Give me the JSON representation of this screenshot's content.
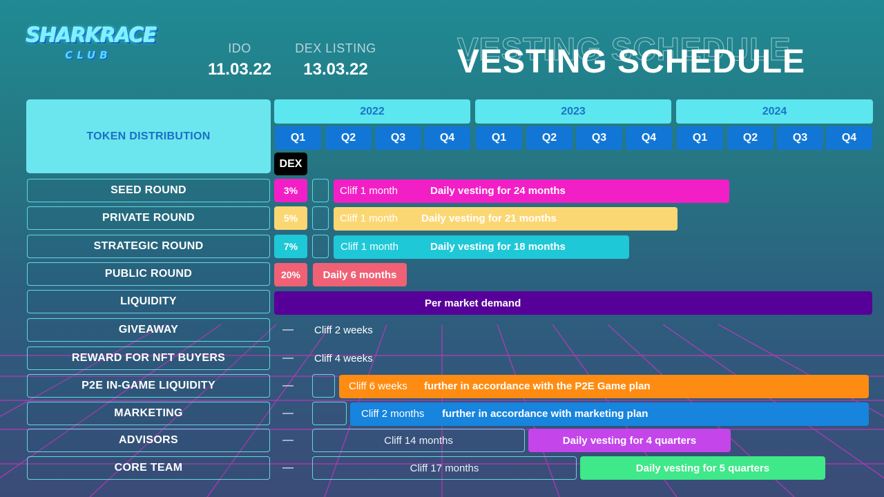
{
  "logo": {
    "main": "SHARKRACE",
    "sub": "CLUB"
  },
  "dates": [
    {
      "label": "IDO",
      "value": "11.03.22"
    },
    {
      "label": "DEX LISTING",
      "value": "13.03.22"
    }
  ],
  "title": "VESTING SCHEDULE",
  "table_header": "TOKEN DISTRIBUTION",
  "years": [
    "2022",
    "2023",
    "2024"
  ],
  "quarters": [
    "Q1",
    "Q2",
    "Q3",
    "Q4"
  ],
  "dex_label": "DEX",
  "rows": [
    {
      "label": "SEED ROUND",
      "percent": "3%",
      "cliff": "Cliff 1 month",
      "vesting": "Daily vesting for 24 months"
    },
    {
      "label": "PRIVATE ROUND",
      "percent": "5%",
      "cliff": "Cliff 1 month",
      "vesting": "Daily vesting for 21 months"
    },
    {
      "label": "STRATEGIC ROUND",
      "percent": "7%",
      "cliff": "Cliff 1 month",
      "vesting": "Daily vesting for 18 months"
    },
    {
      "label": "PUBLIC ROUND",
      "percent": "20%",
      "vesting": "Daily 6 months"
    },
    {
      "label": "LIQUIDITY",
      "vesting": "Per market demand"
    },
    {
      "label": "GIVEAWAY",
      "dash": "—",
      "cliff": "Cliff 2 weeks"
    },
    {
      "label": "REWARD FOR NFT BUYERS",
      "dash": "—",
      "cliff": "Cliff 4 weeks"
    },
    {
      "label": "P2E IN-GAME LIQUIDITY",
      "dash": "—",
      "cliff": "Cliff 6 weeks",
      "vesting": "further in accordance with the P2E Game plan"
    },
    {
      "label": "MARKETING",
      "dash": "—",
      "cliff": "Cliff 2 months",
      "vesting": "further in accordance with marketing plan"
    },
    {
      "label": "ADVISORS",
      "dash": "—",
      "cliff": "Cliff 14 months",
      "vesting": "Daily vesting for 4 quarters"
    },
    {
      "label": "CORE TEAM",
      "dash": "—",
      "cliff": "Cliff 17 months",
      "vesting": "Daily vesting for 5 quarters"
    }
  ],
  "colors": {
    "seed": "#f21fc6",
    "private": "#fbd774",
    "strategic": "#1ec8d7",
    "public": "#f06175",
    "liquidity": "#560099",
    "p2e": "#ff8c12",
    "marketing": "#1784dd",
    "advisors": "#c446ea",
    "core_team": "#3fe889",
    "header_cyan": "#6ce6ee",
    "quarter_blue": "#1276d6"
  }
}
